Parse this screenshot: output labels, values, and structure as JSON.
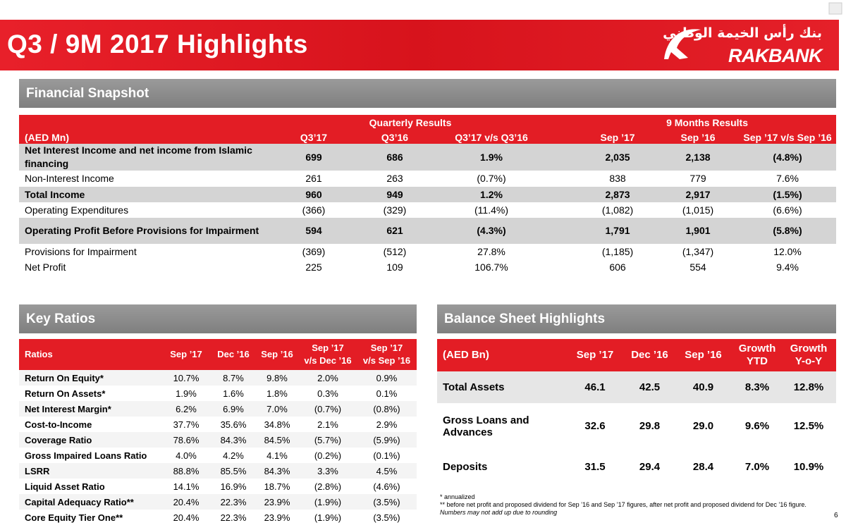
{
  "header": {
    "title": "Q3 / 9M 2017 Highlights",
    "logo_arabic": "بنك رأس الخيمة الوطني",
    "logo_text": "RAKBANK"
  },
  "financial_snapshot": {
    "title": "Financial Snapshot",
    "group_headers": [
      "Quarterly Results",
      "9 Months Results"
    ],
    "columns": [
      "(AED Mn)",
      "Q3’17",
      "Q3’16",
      "Q3’17 v/s Q3’16",
      "Sep ’17",
      "Sep ’16",
      "Sep ’17 v/s Sep ’16"
    ],
    "rows": [
      [
        "Net Interest Income and net income from Islamic financing",
        "699",
        "686",
        "1.9%",
        "2,035",
        "2,138",
        "(4.8%)"
      ],
      [
        "Non-Interest Income",
        "261",
        "263",
        "(0.7%)",
        "838",
        "779",
        "7.6%"
      ],
      [
        "Total Income",
        "960",
        "949",
        "1.2%",
        "2,873",
        "2,917",
        "(1.5%)"
      ],
      [
        "Operating Expenditures",
        "(366)",
        "(329)",
        "(11.4%)",
        "(1,082)",
        "(1,015)",
        "(6.6%)"
      ],
      [
        "Operating Profit Before Provisions for Impairment",
        "594",
        "621",
        "(4.3%)",
        "1,791",
        "1,901",
        "(5.8%)"
      ],
      [
        "Provisions for Impairment",
        "(369)",
        "(512)",
        "27.8%",
        "(1,185)",
        "(1,347)",
        "12.0%"
      ],
      [
        "Net Profit",
        "225",
        "109",
        "106.7%",
        "606",
        "554",
        "9.4%"
      ]
    ]
  },
  "key_ratios": {
    "title": "Key Ratios",
    "columns": [
      "Ratios",
      "Sep ’17",
      "Dec ’16",
      "Sep ’16",
      "Sep ’17\nv/s Dec ’16",
      "Sep ’17\nv/s Sep ’16"
    ],
    "rows": [
      [
        "Return On Equity*",
        "10.7%",
        "8.7%",
        "9.8%",
        "2.0%",
        "0.9%"
      ],
      [
        "Return On Assets*",
        "1.9%",
        "1.6%",
        "1.8%",
        "0.3%",
        "0.1%"
      ],
      [
        "Net Interest Margin*",
        "6.2%",
        "6.9%",
        "7.0%",
        "(0.7%)",
        "(0.8%)"
      ],
      [
        "Cost-to-Income",
        "37.7%",
        "35.6%",
        "34.8%",
        "2.1%",
        "2.9%"
      ],
      [
        "Coverage Ratio",
        "78.6%",
        "84.3%",
        "84.5%",
        "(5.7%)",
        "(5.9%)"
      ],
      [
        "Gross Impaired Loans Ratio",
        "4.0%",
        "4.2%",
        "4.1%",
        "(0.2%)",
        "(0.1%)"
      ],
      [
        "LSRR",
        "88.8%",
        "85.5%",
        "84.3%",
        "3.3%",
        "4.5%"
      ],
      [
        "Liquid Asset Ratio",
        "14.1%",
        "16.9%",
        "18.7%",
        "(2.8%)",
        "(4.6%)"
      ],
      [
        "Capital Adequacy Ratio**",
        "20.4%",
        "22.3%",
        "23.9%",
        "(1.9%)",
        "(3.5%)"
      ],
      [
        "Core Equity Tier One**",
        "20.4%",
        "22.3%",
        "23.9%",
        "(1.9%)",
        "(3.5%)"
      ]
    ]
  },
  "balance_sheet": {
    "title": "Balance Sheet Highlights",
    "columns": [
      "(AED Bn)",
      "Sep ’17",
      "Dec ’16",
      "Sep ’16",
      "Growth\nYTD",
      "Growth\nY-o-Y"
    ],
    "rows": [
      [
        "Total Assets",
        "46.1",
        "42.5",
        "40.9",
        "8.3%",
        "12.8%"
      ],
      [
        "Gross Loans and Advances",
        "32.6",
        "29.8",
        "29.0",
        "9.6%",
        "12.5%"
      ],
      [
        "Deposits",
        "31.5",
        "29.4",
        "28.4",
        "7.0%",
        "10.9%"
      ]
    ]
  },
  "footnotes": [
    "* annualized",
    "** before net profit and proposed dividend for Sep ’16 and Sep ’17 figures, after net profit and proposed dividend for Dec ’16 figure.",
    "Numbers may not add up due to rounding"
  ],
  "page_number": "6"
}
